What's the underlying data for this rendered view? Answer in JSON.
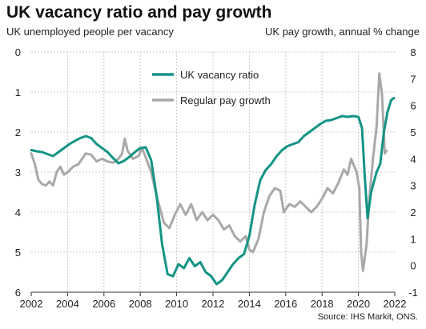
{
  "chart_data": {
    "type": "line",
    "title": "UK vacancy ratio and pay growth",
    "left_axis_label": "UK unemployed people per vacancy",
    "right_axis_label": "UK pay growth, annual % change",
    "source": "Source: IHS Markit, ONS.",
    "left_axis": {
      "min": 0,
      "max": 6,
      "inverted": true,
      "ticks": [
        0,
        1,
        2,
        3,
        4,
        5,
        6
      ]
    },
    "right_axis": {
      "min": -1,
      "max": 8,
      "ticks": [
        -1,
        0,
        1,
        2,
        3,
        4,
        5,
        6,
        7,
        8
      ]
    },
    "x_axis": {
      "min": 2002,
      "max": 2022,
      "ticks": [
        2002,
        2004,
        2006,
        2008,
        2010,
        2012,
        2014,
        2016,
        2018,
        2020,
        2022
      ]
    },
    "grid": true,
    "legend_position": "top-center",
    "series": [
      {
        "name": "UK vacancy ratio",
        "axis": "left",
        "color": "#149485",
        "points": [
          [
            2002.0,
            2.45
          ],
          [
            2002.3,
            2.48
          ],
          [
            2002.6,
            2.5
          ],
          [
            2002.9,
            2.55
          ],
          [
            2003.2,
            2.6
          ],
          [
            2003.5,
            2.5
          ],
          [
            2003.8,
            2.4
          ],
          [
            2004.1,
            2.3
          ],
          [
            2004.4,
            2.22
          ],
          [
            2004.7,
            2.15
          ],
          [
            2005.0,
            2.1
          ],
          [
            2005.3,
            2.15
          ],
          [
            2005.6,
            2.3
          ],
          [
            2005.9,
            2.4
          ],
          [
            2006.2,
            2.5
          ],
          [
            2006.5,
            2.65
          ],
          [
            2006.8,
            2.78
          ],
          [
            2007.1,
            2.72
          ],
          [
            2007.4,
            2.62
          ],
          [
            2007.7,
            2.5
          ],
          [
            2008.0,
            2.4
          ],
          [
            2008.3,
            2.38
          ],
          [
            2008.6,
            2.7
          ],
          [
            2008.9,
            3.6
          ],
          [
            2009.2,
            4.8
          ],
          [
            2009.5,
            5.55
          ],
          [
            2009.8,
            5.6
          ],
          [
            2010.1,
            5.3
          ],
          [
            2010.4,
            5.4
          ],
          [
            2010.7,
            5.15
          ],
          [
            2011.0,
            5.35
          ],
          [
            2011.3,
            5.25
          ],
          [
            2011.6,
            5.5
          ],
          [
            2011.9,
            5.6
          ],
          [
            2012.2,
            5.8
          ],
          [
            2012.5,
            5.7
          ],
          [
            2012.8,
            5.5
          ],
          [
            2013.1,
            5.3
          ],
          [
            2013.4,
            5.15
          ],
          [
            2013.7,
            5.05
          ],
          [
            2014.0,
            4.6
          ],
          [
            2014.3,
            3.8
          ],
          [
            2014.6,
            3.2
          ],
          [
            2014.9,
            2.95
          ],
          [
            2015.2,
            2.8
          ],
          [
            2015.5,
            2.6
          ],
          [
            2015.8,
            2.45
          ],
          [
            2016.1,
            2.35
          ],
          [
            2016.4,
            2.3
          ],
          [
            2016.7,
            2.25
          ],
          [
            2017.0,
            2.1
          ],
          [
            2017.3,
            2.0
          ],
          [
            2017.6,
            1.9
          ],
          [
            2017.9,
            1.8
          ],
          [
            2018.2,
            1.72
          ],
          [
            2018.5,
            1.7
          ],
          [
            2018.8,
            1.65
          ],
          [
            2019.1,
            1.6
          ],
          [
            2019.4,
            1.62
          ],
          [
            2019.7,
            1.6
          ],
          [
            2020.0,
            1.62
          ],
          [
            2020.2,
            1.9
          ],
          [
            2020.35,
            3.1
          ],
          [
            2020.5,
            4.15
          ],
          [
            2020.7,
            3.5
          ],
          [
            2021.0,
            3.0
          ],
          [
            2021.2,
            2.8
          ],
          [
            2021.4,
            2.0
          ],
          [
            2021.6,
            1.5
          ],
          [
            2021.8,
            1.2
          ],
          [
            2021.95,
            1.15
          ]
        ]
      },
      {
        "name": "Regular pay growth",
        "axis": "right",
        "color": "#a9a9a9",
        "points": [
          [
            2002.0,
            4.2
          ],
          [
            2002.2,
            3.8
          ],
          [
            2002.4,
            3.2
          ],
          [
            2002.6,
            3.05
          ],
          [
            2002.8,
            3.0
          ],
          [
            2003.0,
            3.15
          ],
          [
            2003.2,
            3.0
          ],
          [
            2003.4,
            3.5
          ],
          [
            2003.6,
            3.7
          ],
          [
            2003.8,
            3.4
          ],
          [
            2004.0,
            3.5
          ],
          [
            2004.3,
            3.7
          ],
          [
            2004.6,
            3.8
          ],
          [
            2005.0,
            4.2
          ],
          [
            2005.3,
            4.15
          ],
          [
            2005.6,
            3.9
          ],
          [
            2005.9,
            4.0
          ],
          [
            2006.2,
            3.9
          ],
          [
            2006.5,
            3.85
          ],
          [
            2006.8,
            4.0
          ],
          [
            2007.0,
            4.2
          ],
          [
            2007.15,
            4.75
          ],
          [
            2007.3,
            4.3
          ],
          [
            2007.6,
            4.0
          ],
          [
            2007.9,
            4.1
          ],
          [
            2008.1,
            4.4
          ],
          [
            2008.3,
            4.05
          ],
          [
            2008.6,
            3.5
          ],
          [
            2008.9,
            2.6
          ],
          [
            2009.1,
            2.1
          ],
          [
            2009.3,
            1.6
          ],
          [
            2009.6,
            1.4
          ],
          [
            2009.9,
            1.9
          ],
          [
            2010.2,
            2.3
          ],
          [
            2010.5,
            1.9
          ],
          [
            2010.8,
            2.3
          ],
          [
            2011.1,
            1.7
          ],
          [
            2011.4,
            2.0
          ],
          [
            2011.7,
            1.7
          ],
          [
            2012.0,
            1.9
          ],
          [
            2012.3,
            1.7
          ],
          [
            2012.6,
            1.35
          ],
          [
            2012.9,
            1.5
          ],
          [
            2013.2,
            1.1
          ],
          [
            2013.5,
            0.9
          ],
          [
            2013.8,
            1.1
          ],
          [
            2014.0,
            0.6
          ],
          [
            2014.2,
            0.5
          ],
          [
            2014.5,
            1.0
          ],
          [
            2014.8,
            2.0
          ],
          [
            2015.1,
            2.6
          ],
          [
            2015.4,
            2.9
          ],
          [
            2015.7,
            2.8
          ],
          [
            2015.9,
            2.0
          ],
          [
            2016.2,
            2.3
          ],
          [
            2016.5,
            2.2
          ],
          [
            2016.8,
            2.4
          ],
          [
            2017.1,
            2.2
          ],
          [
            2017.4,
            2.0
          ],
          [
            2017.7,
            2.2
          ],
          [
            2018.0,
            2.5
          ],
          [
            2018.3,
            2.9
          ],
          [
            2018.6,
            2.7
          ],
          [
            2018.9,
            3.1
          ],
          [
            2019.2,
            3.6
          ],
          [
            2019.4,
            3.4
          ],
          [
            2019.6,
            4.0
          ],
          [
            2019.9,
            3.5
          ],
          [
            2020.05,
            2.9
          ],
          [
            2020.15,
            0.5
          ],
          [
            2020.25,
            -0.2
          ],
          [
            2020.45,
            0.8
          ],
          [
            2020.6,
            2.5
          ],
          [
            2020.8,
            4.0
          ],
          [
            2021.0,
            5.2
          ],
          [
            2021.15,
            7.2
          ],
          [
            2021.3,
            6.4
          ],
          [
            2021.45,
            4.2
          ],
          [
            2021.55,
            4.3
          ]
        ]
      }
    ]
  }
}
